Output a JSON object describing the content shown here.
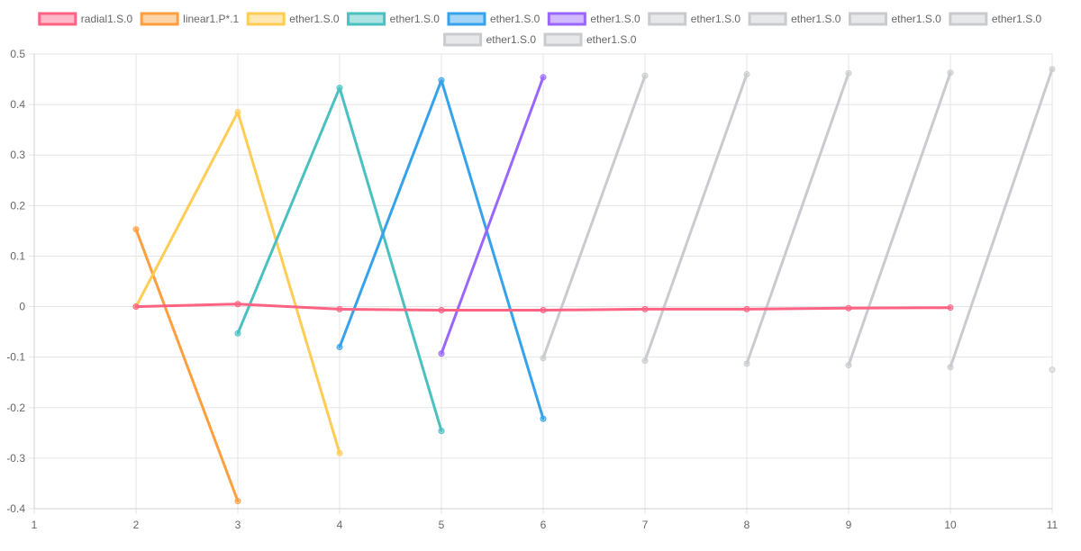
{
  "chart_data": {
    "type": "line",
    "xlim": [
      1,
      11
    ],
    "ylim": [
      -0.4,
      0.5
    ],
    "x_ticks": [
      "1",
      "2",
      "3",
      "4",
      "5",
      "6",
      "7",
      "8",
      "9",
      "10",
      "11"
    ],
    "y_ticks": [
      "0.5",
      "0.4",
      "0.3",
      "0.2",
      "0.1",
      "0",
      "-0.1",
      "-0.2",
      "-0.3",
      "-0.4"
    ],
    "grid": true,
    "legend_position": "top",
    "series": [
      {
        "name": "radial1.S.0",
        "color": "#ff6384",
        "points": [
          [
            2,
            0.0
          ],
          [
            3,
            0.005
          ],
          [
            4,
            -0.005
          ],
          [
            5,
            -0.007
          ],
          [
            6,
            -0.007
          ],
          [
            7,
            -0.005
          ],
          [
            8,
            -0.005
          ],
          [
            9,
            -0.003
          ],
          [
            10,
            -0.002
          ]
        ]
      },
      {
        "name": "linear1.P*.1",
        "color": "#ff9f40",
        "points": [
          [
            2,
            0.153
          ],
          [
            3,
            -0.385
          ]
        ]
      },
      {
        "name": "ether1.S.0",
        "color": "#ffcd56",
        "points": [
          [
            2,
            0.0
          ],
          [
            3,
            0.385
          ],
          [
            4,
            -0.29
          ]
        ]
      },
      {
        "name": "ether1.S.0",
        "color": "#4bc0c0",
        "points": [
          [
            3,
            -0.053
          ],
          [
            4,
            0.433
          ],
          [
            5,
            -0.246
          ]
        ]
      },
      {
        "name": "ether1.S.0",
        "color": "#36a2eb",
        "points": [
          [
            4,
            -0.08
          ],
          [
            5,
            0.448
          ],
          [
            6,
            -0.222
          ]
        ]
      },
      {
        "name": "ether1.S.0",
        "color": "#9966ff",
        "points": [
          [
            5,
            -0.093
          ],
          [
            6,
            0.454
          ]
        ]
      },
      {
        "name": "ether1.S.0",
        "color": "#c9cbcf",
        "points": [
          [
            6,
            -0.102
          ],
          [
            7,
            0.457
          ]
        ]
      },
      {
        "name": "ether1.S.0",
        "color": "#c9cbcf",
        "points": [
          [
            7,
            -0.107
          ],
          [
            8,
            0.46
          ]
        ]
      },
      {
        "name": "ether1.S.0",
        "color": "#c9cbcf",
        "points": [
          [
            8,
            -0.113
          ],
          [
            9,
            0.462
          ]
        ]
      },
      {
        "name": "ether1.S.0",
        "color": "#c9cbcf",
        "points": [
          [
            9,
            -0.116
          ],
          [
            10,
            0.463
          ]
        ]
      },
      {
        "name": "ether1.S.0",
        "color": "#c9cbcf",
        "points": [
          [
            10,
            -0.12
          ],
          [
            11,
            0.47
          ]
        ]
      },
      {
        "name": "ether1.S.0",
        "color": "#c9cbcf",
        "points": [
          [
            11,
            -0.125
          ]
        ]
      }
    ]
  }
}
